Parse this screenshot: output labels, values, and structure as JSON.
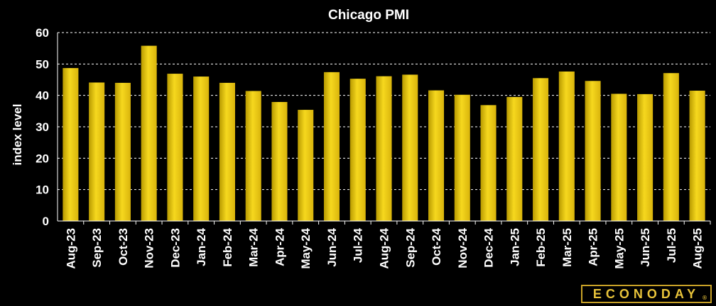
{
  "colors": {
    "background": "#000000",
    "bar_top": "#f4d21a",
    "bar_bottom": "#a08600",
    "text": "#ffffff",
    "grid": "#ffffff"
  },
  "logo": {
    "text": "ECONODAY",
    "reg_mark": "®"
  },
  "chart_data": {
    "type": "bar",
    "title": "Chicago PMI",
    "xlabel": "",
    "ylabel": "index level",
    "ylim": [
      0,
      60
    ],
    "yticks": [
      0,
      10,
      20,
      30,
      40,
      50,
      60
    ],
    "grid": "horizontal dashed",
    "categories": [
      "Aug-23",
      "Sep-23",
      "Oct-23",
      "Nov-23",
      "Dec-23",
      "Jan-24",
      "Feb-24",
      "Mar-24",
      "Apr-24",
      "May-24",
      "Jun-24",
      "Jul-24",
      "Aug-24",
      "Sep-24",
      "Oct-24",
      "Nov-24",
      "Dec-24",
      "Jan-25",
      "Feb-25",
      "Mar-25",
      "Apr-25",
      "May-25",
      "Jun-25",
      "Jul-25",
      "Aug-25"
    ],
    "values": [
      48.7,
      44.1,
      44.0,
      55.8,
      46.9,
      46.0,
      44.0,
      41.4,
      37.9,
      35.4,
      47.4,
      45.3,
      46.1,
      46.6,
      41.6,
      40.2,
      36.9,
      39.5,
      45.5,
      47.6,
      44.6,
      40.5,
      40.4,
      47.1,
      41.5
    ]
  }
}
